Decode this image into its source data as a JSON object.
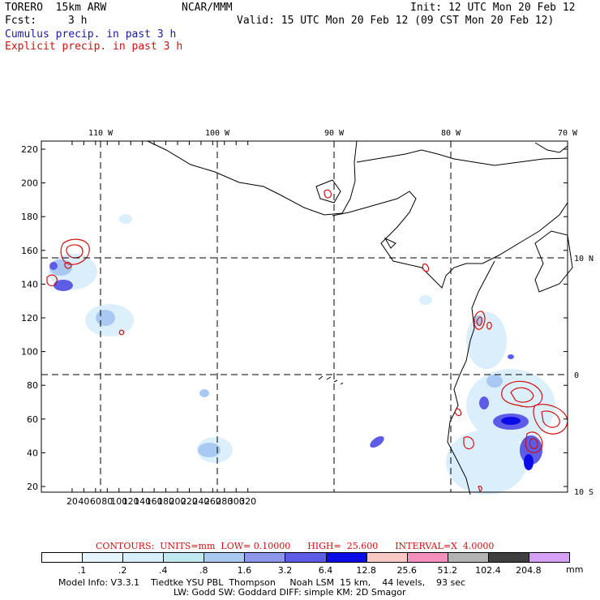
{
  "header": {
    "model_name": "TORERO  15km ARW",
    "org": "NCAR/MMM",
    "init": "Init: 12 UTC Mon 20 Feb 12",
    "fcst_label": "Fcst:",
    "fcst_value": "3 h",
    "valid": "Valid: 15 UTC Mon 20 Feb 12 (09 CST Mon 20 Feb 12)",
    "field1": "Cumulus precip. in past 3 h",
    "field2": "Explicit precip. in past 3 h"
  },
  "colors": {
    "cumulus_text": "#1a1aa6",
    "explicit_text": "#d01010",
    "contour": "#d01010"
  },
  "map": {
    "top_lon_labels": [
      "110 W",
      "100 W",
      "90 W",
      "80 W",
      "70 W"
    ],
    "right_lat_labels": [
      "10 N",
      "0",
      "10 S"
    ],
    "x_ticks": [
      20,
      40,
      60,
      80,
      100,
      120,
      140,
      160,
      180,
      200,
      220,
      240,
      260,
      280,
      300,
      320
    ],
    "y_ticks": [
      20,
      40,
      60,
      80,
      100,
      120,
      140,
      160,
      180,
      200,
      220
    ]
  },
  "contours_line": {
    "text": "CONTOURS:  UNITS=mm  LOW= 0.10000      HIGH=  25.600      INTERVAL=X  4.0000"
  },
  "colorbar": {
    "colors": [
      "#ffffff",
      "#e6f4fd",
      "#d7eefb",
      "#bfe8ef",
      "#a9c9f2",
      "#8d97ea",
      "#5c5ce6",
      "#0b0be8",
      "#f9c9c4",
      "#f58fbc",
      "#b3b3b3",
      "#3f3f3f",
      "#d6a0f7"
    ],
    "labels": [
      ".1",
      ".2",
      ".4",
      ".8",
      "1.6",
      "3.2",
      "6.4",
      "12.8",
      "25.6",
      "51.2",
      "102.4",
      "204.8"
    ],
    "units": "mm"
  },
  "model_info": {
    "line1": "Model Info: V3.3.1    Tiedtke YSU PBL  Thompson     Noah LSM  15 km,    44 levels,    93 sec",
    "line2": "LW: Godd SW: Goddard DIFF: simple KM: 2D Smagor"
  }
}
